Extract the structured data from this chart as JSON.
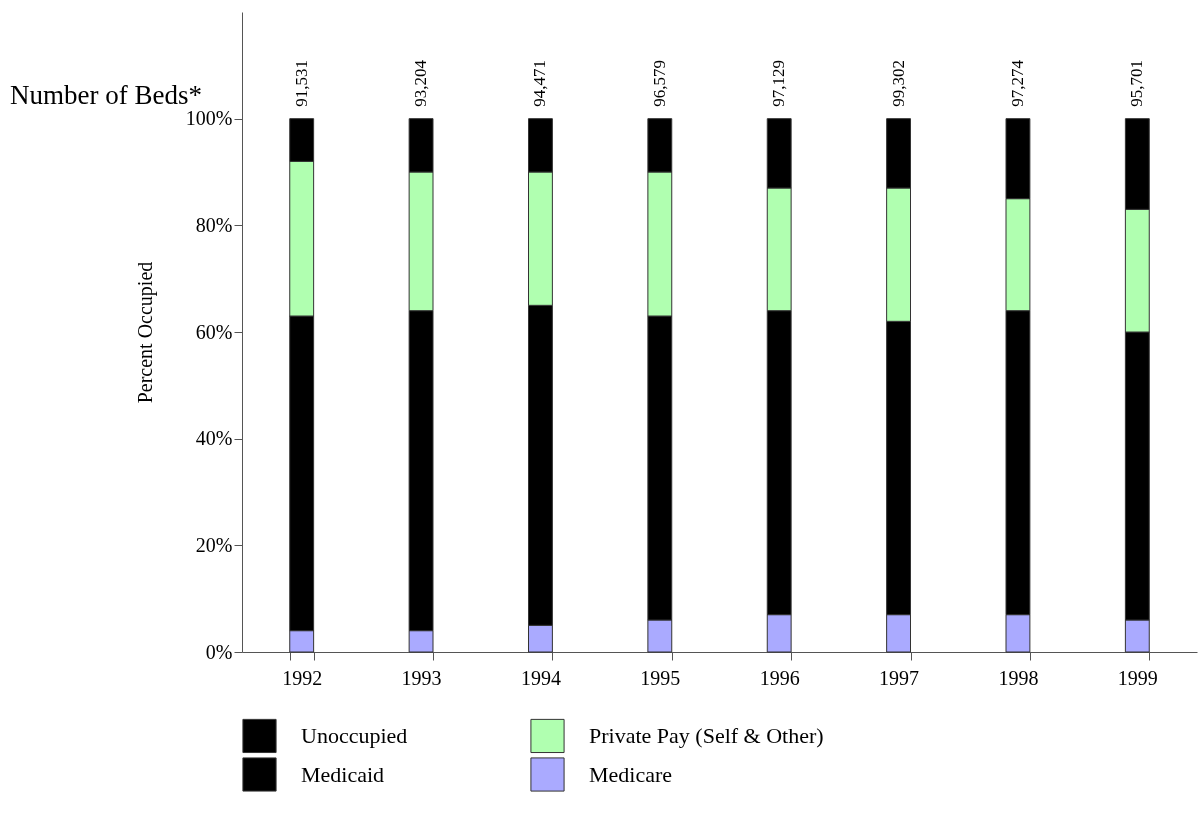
{
  "chart_data": {
    "type": "bar",
    "stacked": true,
    "ylabel": "Percent Occupied",
    "categories": [
      "1992",
      "1993",
      "1994",
      "1995",
      "1996",
      "1997",
      "1998",
      "1999"
    ],
    "series": [
      {
        "name": "Medicare",
        "color": "#aaaaff",
        "values": [
          4,
          4,
          5,
          6,
          7,
          7,
          7,
          6
        ]
      },
      {
        "name": "Medicaid",
        "color": "#000000",
        "values": [
          59,
          60,
          60,
          57,
          57,
          55,
          57,
          54
        ]
      },
      {
        "name": "Private Pay (Self & Other)",
        "color": "#b0ffb0",
        "values": [
          29,
          26,
          25,
          27,
          23,
          25,
          21,
          23
        ]
      },
      {
        "name": "Unoccupied",
        "color": "#000000",
        "values": [
          8,
          10,
          10,
          10,
          13,
          13,
          15,
          17
        ]
      }
    ],
    "ylim": [
      0,
      120
    ],
    "yticks": [
      {
        "value": 0,
        "label": "0%"
      },
      {
        "value": 20,
        "label": "20%"
      },
      {
        "value": 40,
        "label": "40%"
      },
      {
        "value": 60,
        "label": "60%"
      },
      {
        "value": 80,
        "label": "80%"
      },
      {
        "value": 100,
        "label": "100%"
      }
    ],
    "grid": false,
    "legend": "bottom",
    "annotations": [
      "Number of Beds*",
      "91,531",
      "93,204",
      "94,471",
      "96,579",
      "97,129",
      "99,302",
      "97,274",
      "95,701"
    ]
  }
}
